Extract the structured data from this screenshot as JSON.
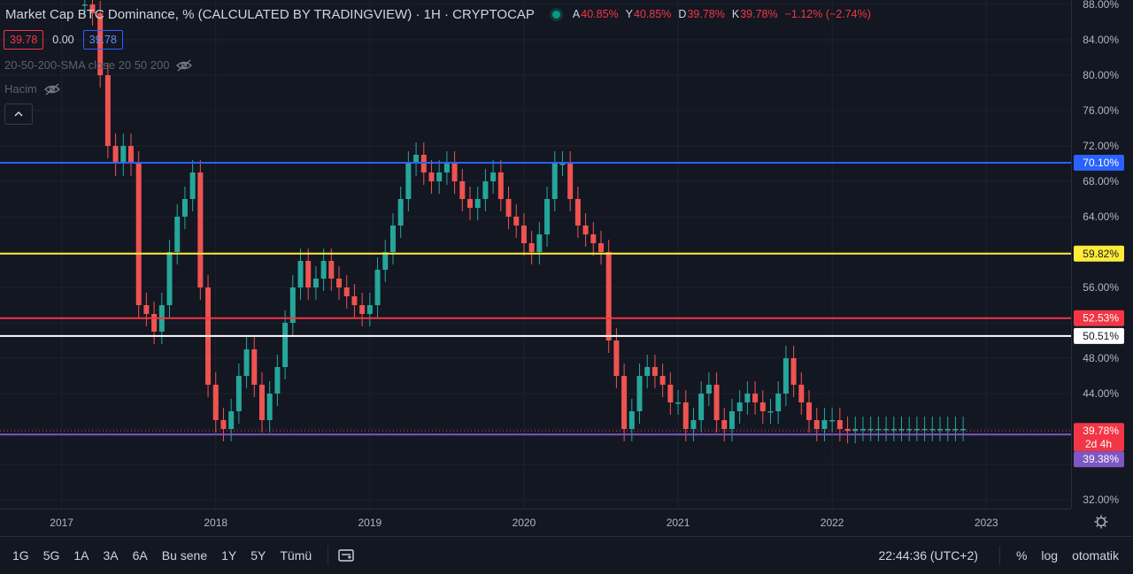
{
  "header": {
    "title": "Market Cap BTC Dominance, % (CALCULATED BY TRADINGVIEW) · 1H · CRYPTOCAP",
    "ohlc": [
      {
        "k": "A",
        "v": "40.85%"
      },
      {
        "k": "Y",
        "v": "40.85%"
      },
      {
        "k": "D",
        "v": "39.78%"
      },
      {
        "k": "K",
        "v": "39.78%"
      },
      {
        "k": "",
        "v": "−1.12% (−2.74%)"
      }
    ],
    "price_boxes": {
      "bid": "39.78",
      "spread": "0.00",
      "ask": "39.78"
    }
  },
  "indicators": {
    "sma_label": "20-50-200-SMA close 20 50 200",
    "volume_label": "Hacim"
  },
  "bottom_toolbar": {
    "ranges": [
      "1G",
      "5G",
      "1A",
      "3A",
      "6A",
      "Bu sene",
      "1Y",
      "5Y",
      "Tümü"
    ],
    "clock": "22:44:36 (UTC+2)",
    "percent": "%",
    "log": "log",
    "auto": "otomatik"
  },
  "colors": {
    "background": "#131722",
    "up": "#26a69a",
    "down": "#ef5350",
    "blue_line": "#2962ff",
    "yellow_line": "#ffeb3b",
    "red_line": "#f23645",
    "white_line": "#ffffff",
    "purple_line": "#7e57c2"
  },
  "chart_data": {
    "type": "line",
    "style": "candlestick",
    "title": "Market Cap BTC Dominance, % (CALCULATED BY TRADINGVIEW)",
    "y_unit": "%",
    "ylim": [
      31.0,
      88.5
    ],
    "y_ticks": [
      32,
      36,
      40,
      44,
      48,
      52,
      56,
      60,
      64,
      68,
      72,
      76,
      80,
      84,
      88
    ],
    "y_tick_labels": [
      "32.00%",
      "",
      "",
      "44.00%",
      "48.00%",
      "",
      "56.00%",
      "",
      "64.00%",
      "68.00%",
      "72.00%",
      "76.00%",
      "80.00%",
      "84.00%",
      "88.00%"
    ],
    "x_ticks": [
      "2017",
      "2018",
      "2019",
      "2020",
      "2021",
      "2022",
      "2023"
    ],
    "xlim": [
      2016.6,
      2023.55
    ],
    "horizontal_lines": [
      {
        "value": 70.1,
        "label": "70.10%",
        "color": "#2962ff"
      },
      {
        "value": 59.82,
        "label": "59.82%",
        "color": "#ffeb3b"
      },
      {
        "value": 52.53,
        "label": "52.53%",
        "color": "#f23645"
      },
      {
        "value": 50.51,
        "label": "50.51%",
        "color": "#ffffff"
      },
      {
        "value": 39.38,
        "label": "39.38%",
        "color": "#7e57c2"
      }
    ],
    "last_price": {
      "value": 39.78,
      "label": "39.78%",
      "countdown": "2d 4h",
      "color": "#f23645"
    },
    "series": [
      {
        "x": [
          2017.15,
          2017.2,
          2017.25,
          2017.3,
          2017.35,
          2017.4,
          2017.45,
          2017.5,
          2017.55,
          2017.6,
          2017.65,
          2017.7,
          2017.75,
          2017.8,
          2017.85,
          2017.9,
          2017.95,
          2018.0,
          2018.05,
          2018.1,
          2018.15,
          2018.2,
          2018.25,
          2018.3,
          2018.35,
          2018.4,
          2018.45,
          2018.5,
          2018.55,
          2018.6,
          2018.65,
          2018.7,
          2018.75,
          2018.8,
          2018.85,
          2018.9,
          2018.95,
          2019.0,
          2019.05,
          2019.1,
          2019.15,
          2019.2,
          2019.25,
          2019.3,
          2019.35,
          2019.4,
          2019.45,
          2019.5,
          2019.55,
          2019.6,
          2019.65,
          2019.7,
          2019.75,
          2019.8,
          2019.85,
          2019.9,
          2019.95,
          2020.0,
          2020.05,
          2020.1,
          2020.15,
          2020.2,
          2020.25,
          2020.3,
          2020.35,
          2020.4,
          2020.45,
          2020.5,
          2020.55,
          2020.6,
          2020.65,
          2020.7,
          2020.75,
          2020.8,
          2020.85,
          2020.9,
          2020.95,
          2021.0,
          2021.05,
          2021.1,
          2021.15,
          2021.2,
          2021.25,
          2021.3,
          2021.35,
          2021.4,
          2021.45,
          2021.5,
          2021.55,
          2021.6,
          2021.65,
          2021.7,
          2021.75,
          2021.8,
          2021.85,
          2021.9,
          2021.95,
          2022.0,
          2022.05,
          2022.1,
          2022.15,
          2022.2,
          2022.25,
          2022.3,
          2022.35,
          2022.4,
          2022.45,
          2022.5,
          2022.55,
          2022.6,
          2022.65,
          2022.7,
          2022.75,
          2022.8,
          2022.85
        ],
        "values": [
          88,
          87,
          80,
          72,
          70,
          72,
          70,
          54,
          53,
          51,
          54,
          60,
          64,
          66,
          69,
          56,
          45,
          41,
          40,
          42,
          46,
          49,
          45,
          41,
          44,
          47,
          52,
          56,
          59,
          56,
          57,
          59,
          57,
          56,
          55,
          54,
          53,
          54,
          58,
          60,
          63,
          66,
          70,
          71,
          69,
          68,
          69,
          70,
          68,
          66,
          65,
          66,
          68,
          69,
          66,
          64,
          63,
          61,
          60,
          62,
          66,
          70,
          70,
          66,
          63,
          62,
          61,
          60,
          50,
          46,
          40,
          42,
          46,
          47,
          46,
          45,
          43,
          43,
          40,
          41,
          44,
          45,
          41,
          40,
          42,
          43,
          44,
          43,
          42,
          42,
          44,
          48,
          45,
          43,
          41,
          40,
          41,
          41,
          40,
          39.78,
          40,
          40,
          40,
          40,
          40,
          40,
          40,
          40,
          40,
          40,
          40,
          40,
          40,
          40,
          40
        ]
      }
    ]
  }
}
